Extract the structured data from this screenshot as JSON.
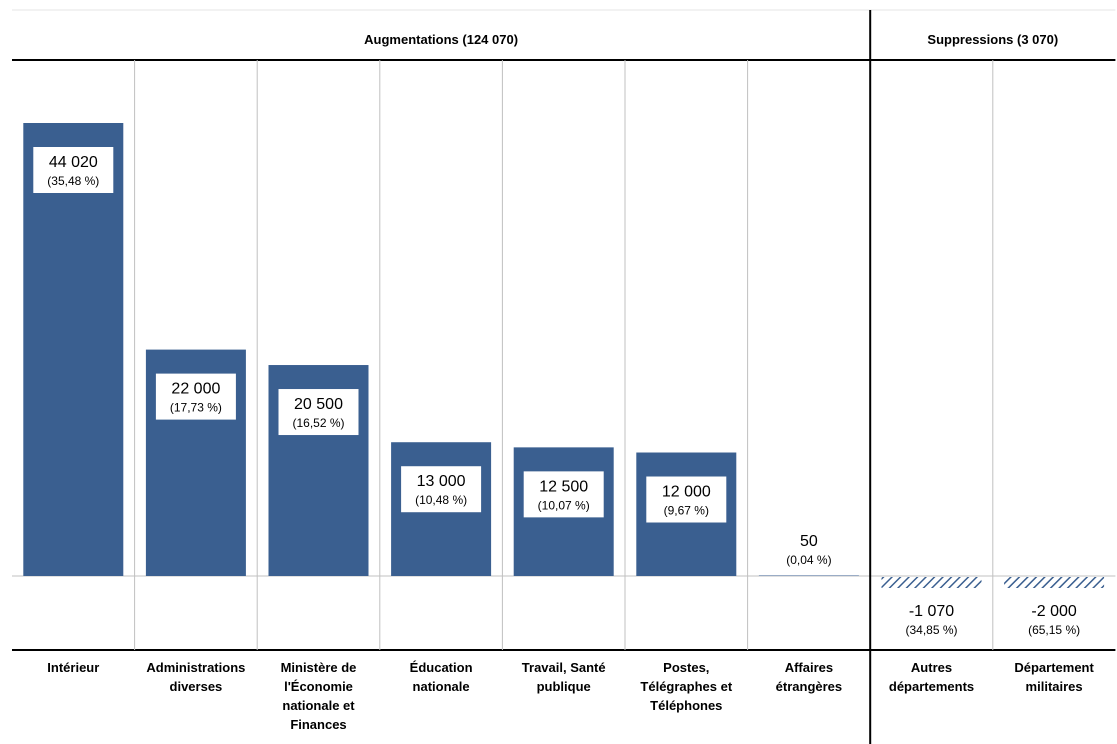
{
  "chart_data": {
    "type": "bar",
    "groups": [
      {
        "label": "Augmentations (124 070)",
        "categories": [
          0,
          1,
          2,
          3,
          4,
          5,
          6
        ]
      },
      {
        "label": "Suppressions (3 070)",
        "categories": [
          7,
          8
        ]
      }
    ],
    "categories": [
      "Intérieur",
      "Administrations diverses",
      "Ministère de l'Économie nationale et Finances",
      "Éducation nationale",
      "Travail, Santé publique",
      "Postes, Télégraphes et Téléphones",
      "Affaires étrangères",
      "Autres départements",
      "Département militaires"
    ],
    "category_lines": [
      [
        "Intérieur"
      ],
      [
        "Administrations",
        "diverses"
      ],
      [
        "Ministère de",
        "l'Économie",
        "nationale et",
        "Finances"
      ],
      [
        "Éducation",
        "nationale"
      ],
      [
        "Travail, Santé",
        "publique"
      ],
      [
        "Postes,",
        "Télégraphes et",
        "Téléphones"
      ],
      [
        "Affaires",
        "étrangères"
      ],
      [
        "Autres",
        "départements"
      ],
      [
        "Département",
        "militaires"
      ]
    ],
    "values": [
      44020,
      22000,
      20500,
      13000,
      12500,
      12000,
      50,
      -1070,
      -2000
    ],
    "value_labels": [
      "44 020",
      "22 000",
      "20 500",
      "13 000",
      "12 500",
      "12 000",
      "50",
      "-1 070",
      "-2 000"
    ],
    "percent_labels": [
      "(35,48 %)",
      "(17,73 %)",
      "(16,52 %)",
      "(10,48 %)",
      "(10,07 %)",
      "(9,67 %)",
      "(0,04 %)",
      "(34,85 %)",
      "(65,15 %)"
    ],
    "colors": {
      "positive": "#3a5f90",
      "negative_hatch": "#3a5f90",
      "gridline": "#c0c0c0",
      "divider": "#000000"
    },
    "grid": true,
    "legend": "none"
  }
}
